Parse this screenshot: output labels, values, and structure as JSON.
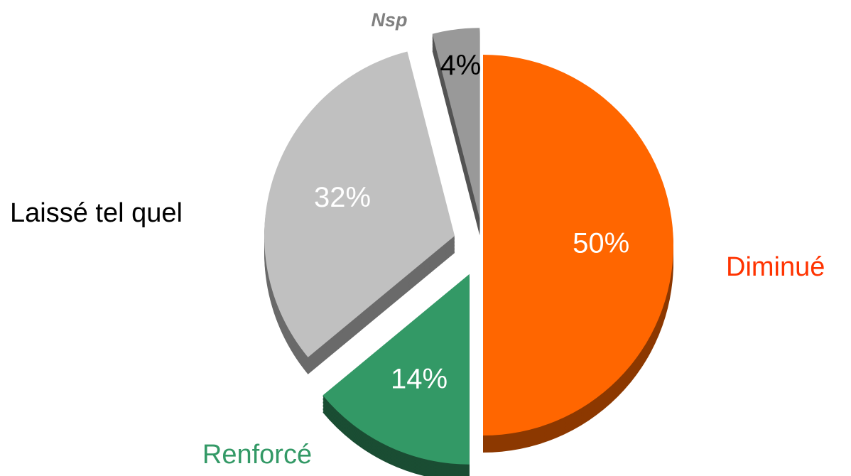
{
  "chart_data": {
    "type": "pie",
    "categories": [
      "Diminué",
      "Renforcé",
      "Laissé tel quel",
      "Nsp"
    ],
    "values": [
      50,
      14,
      32,
      4
    ],
    "value_labels": [
      "50%",
      "14%",
      "32%",
      "4%"
    ],
    "colors": [
      "#ff6600",
      "#339966",
      "#c0c0c0",
      "#999999"
    ]
  }
}
